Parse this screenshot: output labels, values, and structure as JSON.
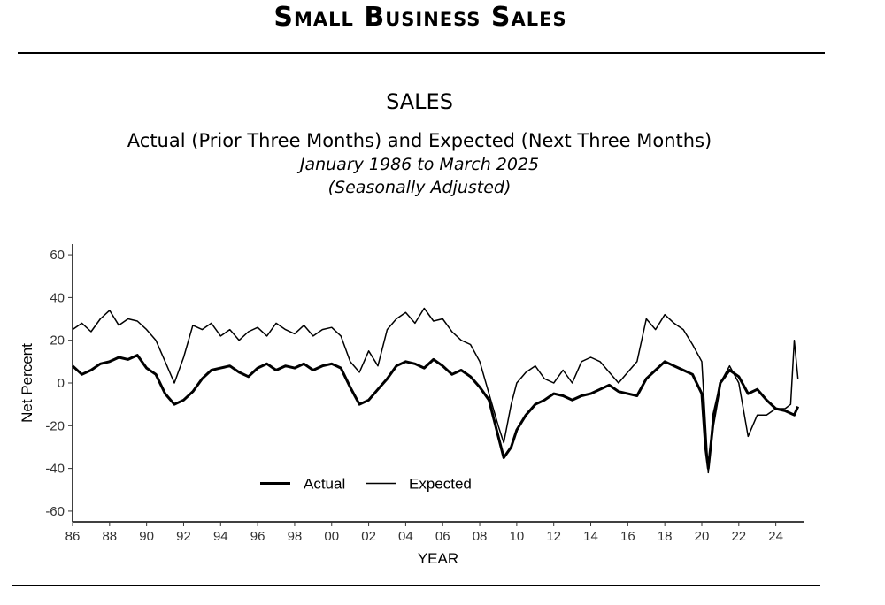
{
  "page": {
    "title": "Small Business Sales"
  },
  "chart_data": {
    "type": "line",
    "title": "SALES",
    "subtitle": "Actual (Prior Three Months) and Expected (Next Three Months)",
    "date_range": "January 1986 to March 2025",
    "adjustment": "(Seasonally Adjusted)",
    "xlabel": "YEAR",
    "ylabel": "Net Percent",
    "xlim": [
      1986,
      2025.5
    ],
    "ylim": [
      -65,
      65
    ],
    "x_ticks": [
      1986,
      1988,
      1990,
      1992,
      1994,
      1996,
      1998,
      2000,
      2002,
      2004,
      2006,
      2008,
      2010,
      2012,
      2014,
      2016,
      2018,
      2020,
      2022,
      2024
    ],
    "x_tick_labels": [
      "86",
      "88",
      "90",
      "92",
      "94",
      "96",
      "98",
      "00",
      "02",
      "04",
      "06",
      "08",
      "10",
      "12",
      "14",
      "16",
      "18",
      "20",
      "22",
      "24"
    ],
    "y_ticks": [
      60,
      40,
      20,
      0,
      -20,
      -40,
      -60
    ],
    "y_tick_labels": [
      "60",
      "40",
      "20",
      "0",
      "-20",
      "-40",
      "-60"
    ],
    "legend": {
      "placement": "bottom-left",
      "entries": [
        "Actual",
        "Expected"
      ]
    },
    "series": [
      {
        "name": "Actual",
        "style": "thick",
        "x": [
          1986,
          1986.5,
          1987,
          1987.5,
          1988,
          1988.5,
          1989,
          1989.5,
          1990,
          1990.5,
          1991,
          1991.5,
          1992,
          1992.5,
          1993,
          1993.5,
          1994,
          1994.5,
          1995,
          1995.5,
          1996,
          1996.5,
          1997,
          1997.5,
          1998,
          1998.5,
          1999,
          1999.5,
          2000,
          2000.5,
          2001,
          2001.5,
          2002,
          2002.5,
          2003,
          2003.5,
          2004,
          2004.5,
          2005,
          2005.5,
          2006,
          2006.5,
          2007,
          2007.5,
          2008,
          2008.5,
          2009,
          2009.3,
          2009.7,
          2010,
          2010.5,
          2011,
          2011.5,
          2012,
          2012.5,
          2013,
          2013.5,
          2014,
          2014.5,
          2015,
          2015.5,
          2016,
          2016.5,
          2017,
          2017.5,
          2018,
          2018.5,
          2019,
          2019.5,
          2020,
          2020.2,
          2020.35,
          2020.6,
          2021,
          2021.5,
          2022,
          2022.5,
          2023,
          2023.5,
          2024,
          2024.5,
          2025,
          2025.2
        ],
        "values": [
          8,
          4,
          6,
          9,
          10,
          12,
          11,
          13,
          7,
          4,
          -5,
          -10,
          -8,
          -4,
          2,
          6,
          7,
          8,
          5,
          3,
          7,
          9,
          6,
          8,
          7,
          9,
          6,
          8,
          9,
          7,
          -2,
          -10,
          -8,
          -3,
          2,
          8,
          10,
          9,
          7,
          11,
          8,
          4,
          6,
          3,
          -2,
          -8,
          -25,
          -35,
          -30,
          -22,
          -15,
          -10,
          -8,
          -5,
          -6,
          -8,
          -6,
          -5,
          -3,
          -1,
          -4,
          -5,
          -6,
          2,
          6,
          10,
          8,
          6,
          4,
          -5,
          -30,
          -40,
          -20,
          0,
          6,
          3,
          -5,
          -3,
          -8,
          -12,
          -13,
          -15,
          -11
        ]
      },
      {
        "name": "Expected",
        "style": "thin",
        "x": [
          1986,
          1986.5,
          1987,
          1987.5,
          1988,
          1988.5,
          1989,
          1989.5,
          1990,
          1990.5,
          1991,
          1991.5,
          1992,
          1992.5,
          1993,
          1993.5,
          1994,
          1994.5,
          1995,
          1995.5,
          1996,
          1996.5,
          1997,
          1997.5,
          1998,
          1998.5,
          1999,
          1999.5,
          2000,
          2000.5,
          2001,
          2001.5,
          2002,
          2002.5,
          2003,
          2003.5,
          2004,
          2004.5,
          2005,
          2005.5,
          2006,
          2006.5,
          2007,
          2007.5,
          2008,
          2008.5,
          2009,
          2009.3,
          2009.7,
          2010,
          2010.5,
          2011,
          2011.5,
          2012,
          2012.5,
          2013,
          2013.5,
          2014,
          2014.5,
          2015,
          2015.5,
          2016,
          2016.5,
          2017,
          2017.5,
          2018,
          2018.5,
          2019,
          2019.5,
          2020,
          2020.2,
          2020.35,
          2020.6,
          2021,
          2021.5,
          2022,
          2022.5,
          2023,
          2023.5,
          2024,
          2024.5,
          2024.8,
          2025,
          2025.2
        ],
        "values": [
          25,
          28,
          24,
          30,
          34,
          27,
          30,
          29,
          25,
          20,
          10,
          0,
          12,
          27,
          25,
          28,
          22,
          25,
          20,
          24,
          26,
          22,
          28,
          25,
          23,
          27,
          22,
          25,
          26,
          22,
          10,
          5,
          15,
          8,
          25,
          30,
          33,
          28,
          35,
          29,
          30,
          24,
          20,
          18,
          10,
          -5,
          -20,
          -28,
          -10,
          0,
          5,
          8,
          2,
          0,
          6,
          0,
          10,
          12,
          10,
          5,
          0,
          5,
          10,
          30,
          25,
          32,
          28,
          25,
          18,
          10,
          -20,
          -42,
          -15,
          0,
          8,
          0,
          -25,
          -15,
          -15,
          -12,
          -12,
          -10,
          20,
          2
        ]
      }
    ]
  }
}
